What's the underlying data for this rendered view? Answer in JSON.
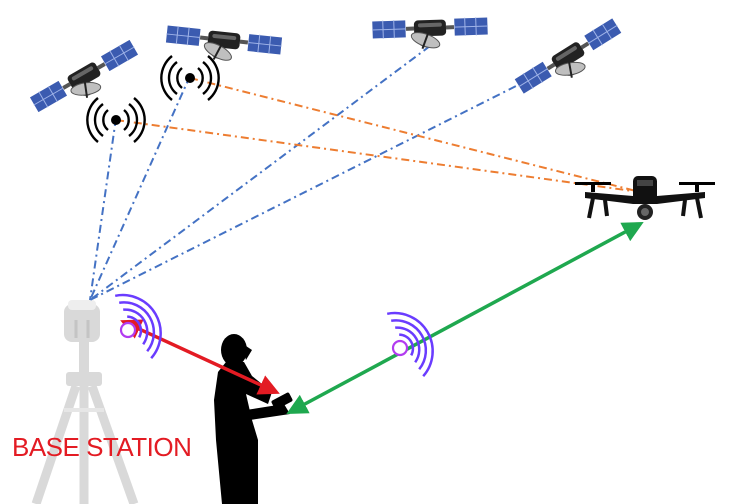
{
  "labels": {
    "base_station": "BASE STATION"
  },
  "colors": {
    "gnss_link_blue": "#4472c4",
    "correction_link_orange": "#ed7d31",
    "radio_link_red": "#e31b23",
    "control_link_green": "#1fa84f",
    "radio_wave_purple": "#6a3cff",
    "radio_node_violet": "#b23cf0",
    "base_station_label": "#e31b23",
    "tripod_gray": "#d9d9d9",
    "silhouette": "#000000",
    "satellite_panel": "#3b5bb0"
  },
  "icons": {
    "satellites": [
      "satellite-icon",
      "satellite-icon",
      "satellite-icon",
      "satellite-icon"
    ],
    "signal_waves": [
      "signal-waves-icon",
      "signal-waves-icon"
    ],
    "radio_waves": [
      "radio-waves-icon",
      "radio-waves-icon"
    ],
    "drone": "drone-icon",
    "operator": "operator-silhouette-icon",
    "base_station": "base-station-tripod-icon"
  }
}
